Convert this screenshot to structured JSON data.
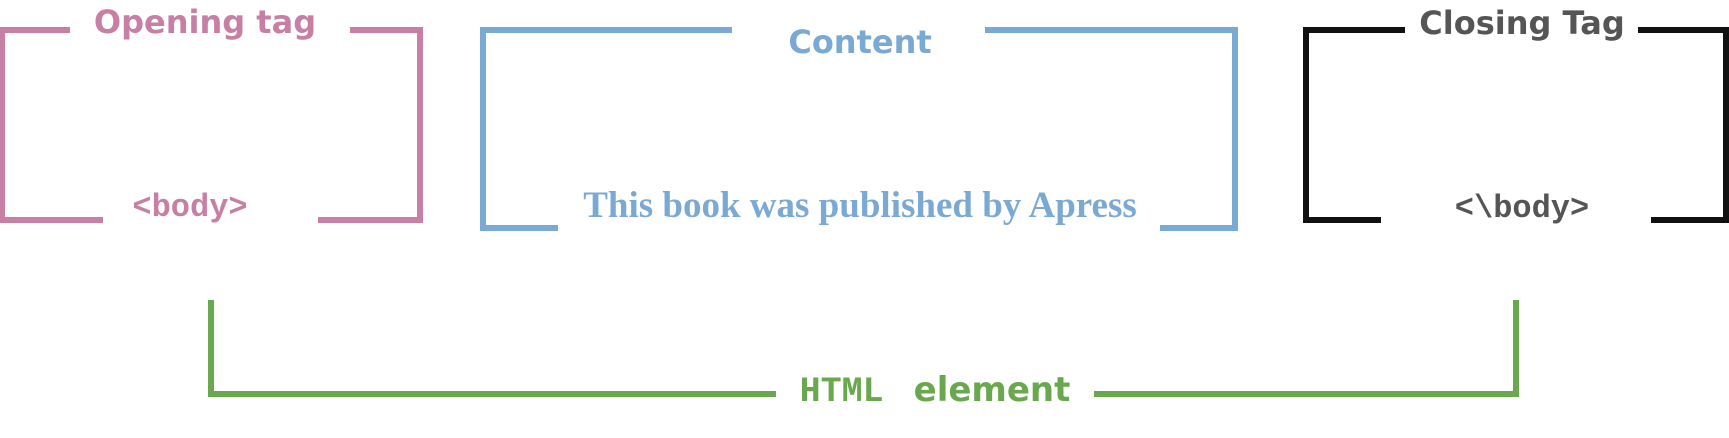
{
  "colors": {
    "opening": "#c77fa4",
    "content": "#7aa9d4",
    "closing": "#555555",
    "closing_bracket": "#111111",
    "element": "#6aa84f"
  },
  "opening_tag": {
    "title": "Opening tag",
    "code": "<body>"
  },
  "content": {
    "title": "Content",
    "text": "This book was published by Apress"
  },
  "closing_tag": {
    "title": "Closing Tag",
    "code": "<\\body>"
  },
  "html_element": {
    "code_label": "HTML",
    "word_label": "element"
  }
}
